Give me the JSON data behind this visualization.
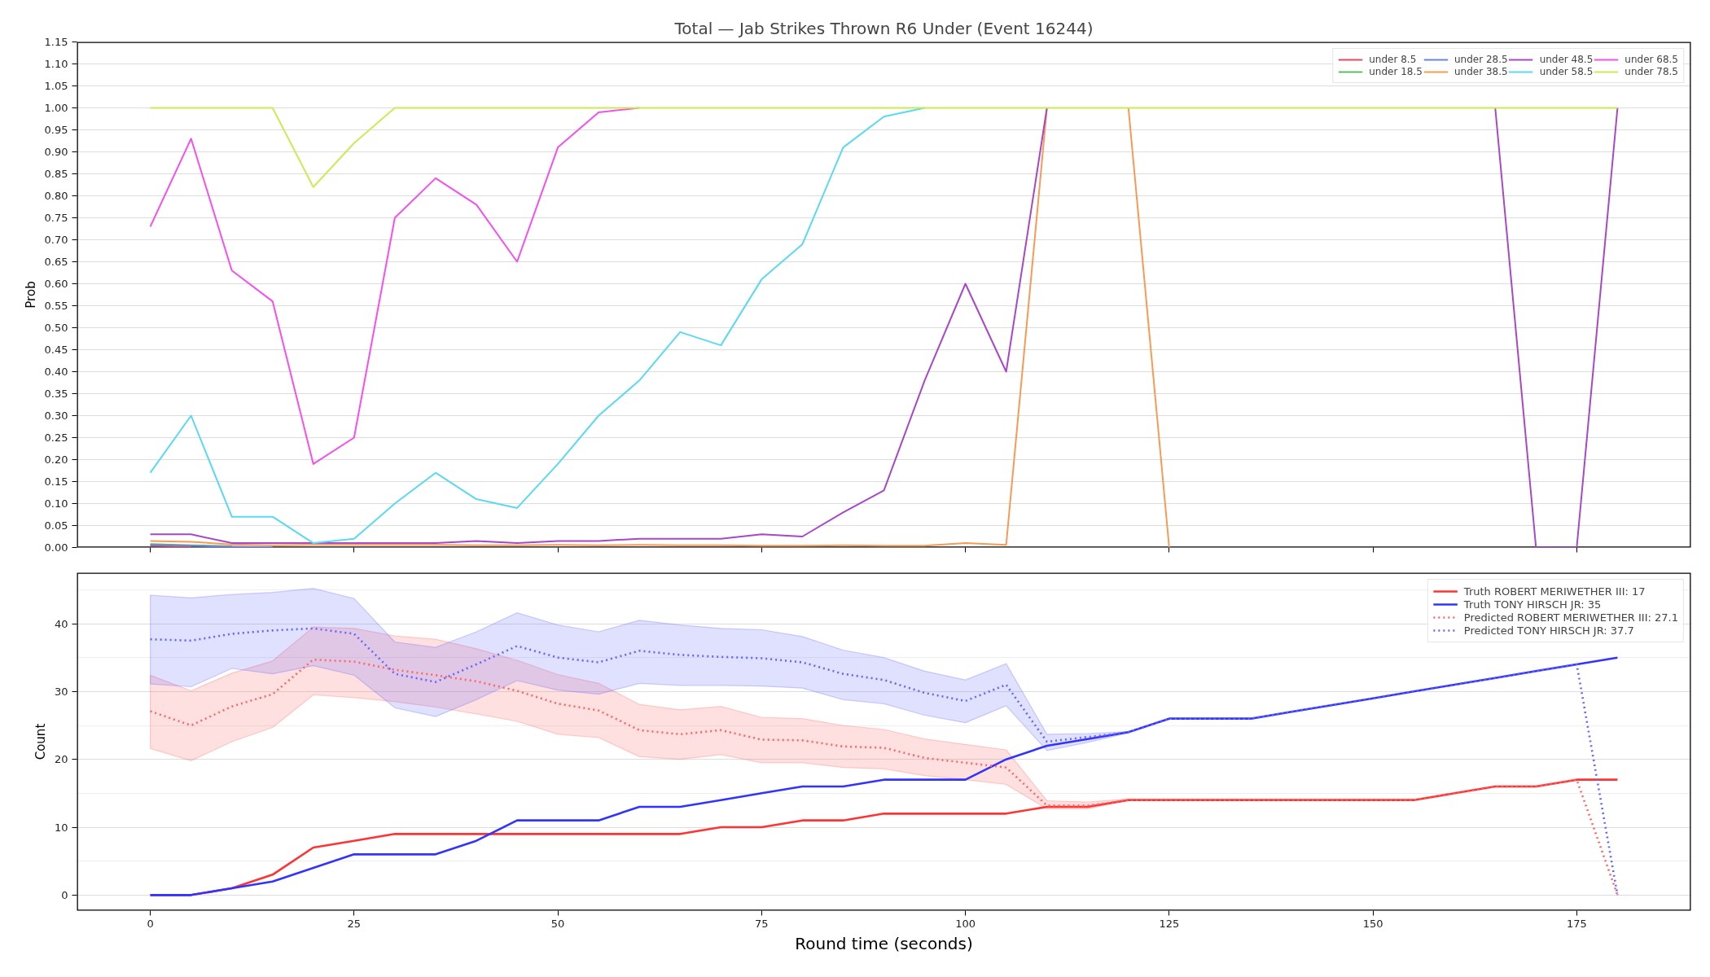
{
  "chart_data": [
    {
      "type": "line",
      "title": "Total — Jab Strikes Thrown R6 Under (Event 16244)",
      "ylabel": "Prob",
      "x": [
        0,
        5,
        10,
        15,
        20,
        25,
        30,
        35,
        40,
        45,
        50,
        55,
        60,
        65,
        70,
        75,
        80,
        85,
        90,
        95,
        100,
        105,
        110,
        115,
        120,
        125,
        130,
        135,
        140,
        145,
        150,
        155,
        160,
        165,
        170,
        175,
        180
      ],
      "xlim": [
        -9,
        189
      ],
      "xticks": [
        0,
        25,
        50,
        75,
        100,
        125,
        150,
        175
      ],
      "ylim": [
        0,
        1.15
      ],
      "yticks": [
        {
          "value": 0,
          "label": "0.00"
        },
        {
          "value": 0.05,
          "label": "0.05"
        },
        {
          "value": 0.1,
          "label": "0.10"
        },
        {
          "value": 0.15,
          "label": "0.15"
        },
        {
          "value": 0.2,
          "label": "0.20"
        },
        {
          "value": 0.25,
          "label": "0.25"
        },
        {
          "value": 0.3,
          "label": "0.30"
        },
        {
          "value": 0.35,
          "label": "0.35"
        },
        {
          "value": 0.4,
          "label": "0.40"
        },
        {
          "value": 0.45,
          "label": "0.45"
        },
        {
          "value": 0.5,
          "label": "0.50"
        },
        {
          "value": 0.55,
          "label": "0.55"
        },
        {
          "value": 0.6,
          "label": "0.60"
        },
        {
          "value": 0.65,
          "label": "0.65"
        },
        {
          "value": 0.7,
          "label": "0.70"
        },
        {
          "value": 0.75,
          "label": "0.75"
        },
        {
          "value": 0.8,
          "label": "0.80"
        },
        {
          "value": 0.85,
          "label": "0.85"
        },
        {
          "value": 0.9,
          "label": "0.90"
        },
        {
          "value": 0.95,
          "label": "0.95"
        },
        {
          "value": 1,
          "label": "1.00"
        },
        {
          "value": 1.05,
          "label": "1.05"
        },
        {
          "value": 1.1,
          "label": "1.10"
        },
        {
          "value": 1.15,
          "label": "1.15"
        }
      ],
      "tick_labels": "y",
      "grid": "y",
      "legend": "top right",
      "line_style": "solid",
      "series": [
        {
          "name": "under 8.5",
          "color": "#e8475f",
          "values": [
            0.004,
            0.002,
            null,
            null,
            null,
            null,
            null,
            null,
            null,
            null,
            null,
            null,
            null,
            null,
            null,
            null,
            null,
            null,
            null,
            null,
            null,
            null,
            null,
            null,
            null,
            null,
            null,
            null,
            null,
            null,
            null,
            null,
            null,
            null,
            null,
            null,
            null
          ]
        },
        {
          "name": "under 18.5",
          "color": "#5cbf5c",
          "values": [
            0.008,
            0.005,
            0.003,
            null,
            null,
            null,
            null,
            null,
            null,
            null,
            null,
            null,
            null,
            null,
            null,
            null,
            null,
            null,
            null,
            null,
            null,
            null,
            null,
            null,
            null,
            null,
            null,
            null,
            null,
            null,
            null,
            null,
            null,
            null,
            null,
            null,
            null
          ]
        },
        {
          "name": "under 28.5",
          "color": "#6a84e0",
          "values": [
            0.006,
            0.004,
            0.002,
            0.001,
            null,
            null,
            null,
            null,
            null,
            null,
            null,
            null,
            null,
            null,
            null,
            null,
            null,
            null,
            null,
            null,
            null,
            null,
            null,
            null,
            null,
            null,
            null,
            null,
            null,
            null,
            null,
            null,
            null,
            null,
            null,
            null,
            null
          ]
        },
        {
          "name": "under 38.5",
          "color": "#f79a55",
          "values": [
            0.015,
            0.013,
            0.007,
            0.005,
            0.006,
            0.006,
            0.006,
            0.006,
            0.005,
            0.005,
            0.006,
            0.005,
            0.006,
            0.005,
            0.005,
            0.004,
            0.004,
            0.005,
            0.004,
            0.004,
            0.01,
            0.006,
            1,
            null,
            1,
            0,
            null,
            null,
            null,
            null,
            null,
            null,
            null,
            null,
            null,
            null,
            null
          ]
        },
        {
          "name": "under 48.5",
          "color": "#a847c8",
          "values": [
            0.03,
            0.03,
            0.01,
            0.01,
            0.01,
            0.01,
            0.01,
            0.01,
            0.015,
            0.01,
            0.015,
            0.015,
            0.02,
            0.02,
            0.02,
            0.03,
            0.025,
            0.08,
            0.13,
            0.38,
            0.6,
            0.4,
            1,
            null,
            null,
            null,
            null,
            null,
            null,
            null,
            null,
            null,
            null,
            1,
            0,
            0,
            1
          ]
        },
        {
          "name": "under 58.5",
          "color": "#5ad9f2",
          "values": [
            0.17,
            0.3,
            0.07,
            0.07,
            0.01,
            0.02,
            0.1,
            0.17,
            0.11,
            0.09,
            0.19,
            0.3,
            0.38,
            0.49,
            0.46,
            0.61,
            0.69,
            0.91,
            0.98,
            1,
            null,
            null,
            null,
            null,
            null,
            null,
            null,
            null,
            null,
            null,
            null,
            null,
            null,
            null,
            null,
            null,
            null
          ]
        },
        {
          "name": "under 68.5",
          "color": "#f54ff0",
          "values": [
            0.73,
            0.93,
            0.63,
            0.56,
            0.19,
            0.25,
            0.75,
            0.84,
            0.78,
            0.65,
            0.91,
            0.99,
            1,
            null,
            null,
            null,
            null,
            null,
            null,
            null,
            null,
            null,
            null,
            null,
            null,
            null,
            null,
            null,
            null,
            null,
            null,
            null,
            null,
            null,
            null,
            null,
            null
          ]
        },
        {
          "name": "under 78.5",
          "color": "#c9ec55",
          "values": [
            1,
            1,
            1,
            1,
            0.82,
            0.92,
            1,
            1,
            1,
            1,
            1,
            1,
            1,
            1,
            1,
            1,
            1,
            1,
            1,
            1,
            1,
            1,
            1,
            1,
            1,
            1,
            1,
            1,
            1,
            1,
            1,
            1,
            1,
            1,
            1,
            1,
            1
          ]
        }
      ]
    },
    {
      "type": "line",
      "xlabel": "Round time (seconds)",
      "ylabel": "Count",
      "x": [
        0,
        5,
        10,
        15,
        20,
        25,
        30,
        35,
        40,
        45,
        50,
        55,
        60,
        65,
        70,
        75,
        80,
        85,
        90,
        95,
        100,
        105,
        110,
        115,
        120,
        125,
        130,
        135,
        140,
        145,
        150,
        155,
        160,
        165,
        170,
        175,
        180
      ],
      "xlim": [
        -9,
        189
      ],
      "xticks": [
        0,
        25,
        50,
        75,
        100,
        125,
        150,
        175
      ],
      "ylim": [
        -2.3,
        47.5
      ],
      "yticks": [
        0,
        {
          "value": 5,
          "label": null
        },
        10,
        {
          "value": 15,
          "label": null
        },
        20,
        {
          "value": 25,
          "label": null
        },
        30,
        {
          "value": 35,
          "label": null
        },
        40,
        {
          "value": 45,
          "label": null
        }
      ],
      "grid": "y",
      "legend": "top right",
      "series": [
        {
          "name": "Truth ROBERT MERIWETHER III: 17",
          "color": "#ff3333",
          "line_style": "solid",
          "values": [
            0,
            0,
            1,
            3,
            7,
            8,
            9,
            9,
            9,
            9,
            9,
            9,
            9,
            9,
            10,
            10,
            11,
            11,
            12,
            12,
            12,
            12,
            13,
            13,
            14,
            14,
            14,
            14,
            14,
            14,
            14,
            14,
            15,
            16,
            16,
            17,
            17
          ]
        },
        {
          "name": "Truth TONY HIRSCH JR: 35",
          "color": "#3333ff",
          "line_style": "solid",
          "values": [
            0,
            0,
            1,
            2,
            4,
            6,
            6,
            6,
            8,
            11,
            11,
            11,
            13,
            13,
            14,
            15,
            16,
            16,
            17,
            17,
            17,
            20,
            22,
            23,
            24,
            26,
            26,
            26,
            27,
            28,
            29,
            30,
            31,
            32,
            33,
            34,
            35
          ]
        },
        {
          "name": "Predicted ROBERT MERIWETHER III: 27.1",
          "color": "#ff6666",
          "line_style": "dotted",
          "values": [
            27.1,
            25.0,
            27.8,
            29.6,
            34.7,
            34.4,
            33.2,
            32.4,
            31.5,
            30.1,
            28.2,
            27.2,
            24.3,
            23.7,
            24.3,
            22.9,
            22.8,
            21.9,
            21.7,
            20.2,
            19.5,
            18.8,
            13.2,
            13.2,
            14,
            14,
            14,
            14,
            14,
            14,
            14,
            14,
            15,
            16,
            16,
            17,
            0
          ],
          "lower": [
            21.6,
            19.8,
            22.6,
            24.7,
            29.5,
            29.1,
            28.5,
            27.7,
            26.7,
            25.6,
            23.7,
            23.2,
            20.4,
            20.0,
            20.7,
            19.5,
            19.5,
            18.8,
            18.6,
            17.6,
            17.0,
            16.3,
            12.7,
            12.7,
            14.0,
            null,
            null,
            null,
            null,
            null,
            null,
            null,
            null,
            null,
            null,
            null,
            null
          ],
          "upper": [
            32.4,
            30.1,
            32.7,
            34.5,
            39.5,
            39.3,
            38.2,
            37.7,
            36.3,
            34.6,
            32.5,
            31.2,
            28.1,
            27.3,
            27.8,
            26.2,
            26.0,
            25.0,
            24.4,
            23.0,
            22.2,
            21.4,
            13.9,
            13.7,
            14.2,
            null,
            null,
            null,
            null,
            null,
            null,
            null,
            null,
            null,
            null,
            null,
            null
          ]
        },
        {
          "name": "Predicted TONY HIRSCH JR: 37.7",
          "color": "#6666ff",
          "line_style": "dotted",
          "values": [
            37.7,
            37.5,
            38.5,
            39.0,
            39.3,
            38.5,
            32.6,
            31.4,
            34.0,
            36.7,
            35.0,
            34.3,
            36.0,
            35.4,
            35.1,
            34.9,
            34.3,
            32.6,
            31.7,
            29.8,
            28.6,
            31.0,
            22.6,
            23.3,
            24,
            26,
            26,
            26,
            27,
            28,
            29,
            30,
            31,
            32,
            33,
            34,
            0
          ],
          "lower": [
            31.1,
            30.7,
            33.4,
            32.6,
            33.8,
            32.4,
            27.6,
            26.3,
            28.8,
            31.6,
            30.2,
            29.6,
            31.2,
            30.9,
            30.9,
            30.8,
            30.5,
            28.8,
            28.2,
            26.5,
            25.4,
            27.9,
            21.3,
            22.5,
            23.9,
            null,
            null,
            null,
            null,
            null,
            null,
            null,
            null,
            null,
            null,
            null,
            null
          ],
          "upper": [
            44.2,
            43.8,
            44.3,
            44.6,
            45.2,
            43.7,
            37.3,
            36.5,
            38.8,
            41.6,
            39.8,
            38.8,
            40.5,
            39.8,
            39.3,
            39.1,
            38.1,
            36.1,
            35.0,
            33.0,
            31.7,
            34.1,
            23.7,
            23.8,
            24.1,
            null,
            null,
            null,
            null,
            null,
            null,
            null,
            null,
            null,
            null,
            null,
            null
          ]
        }
      ]
    }
  ]
}
